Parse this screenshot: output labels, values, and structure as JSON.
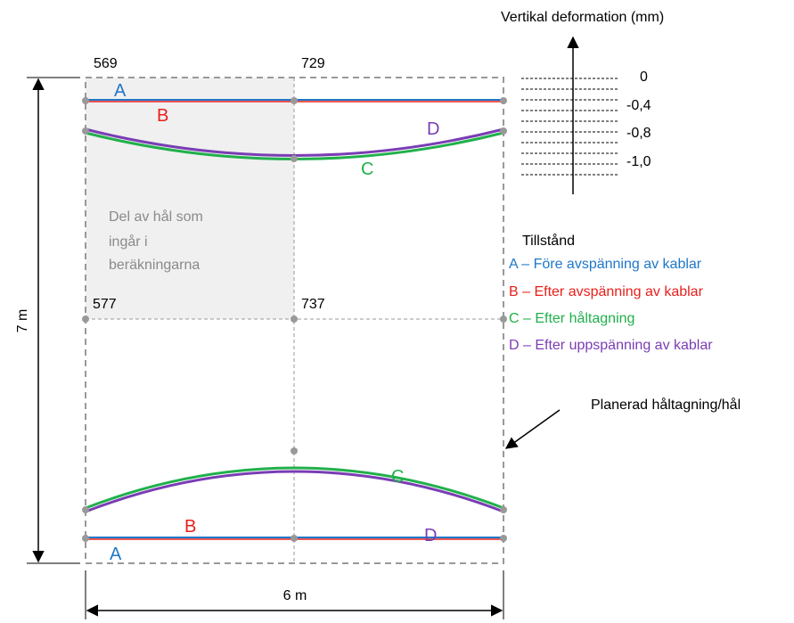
{
  "vertical_axis": {
    "title": "Vertikal deformation  (mm)",
    "ticks": [
      "0",
      "-0,4",
      "-0,8",
      "-1,0"
    ]
  },
  "node_labels": {
    "top_left": "569",
    "top_mid": "729",
    "mid_left": "577",
    "mid_mid": "737"
  },
  "hole_note": [
    "Del av hål som",
    "ingår i",
    "beräkningarna"
  ],
  "dimensions": {
    "height": "7 m",
    "width": "6 m"
  },
  "curve_labels": {
    "top": {
      "A": "A",
      "B": "B",
      "C": "C",
      "D": "D"
    },
    "bottom": {
      "A": "A",
      "B": "B",
      "C": "C",
      "D": "D"
    }
  },
  "legend": {
    "title": "Tillstånd",
    "items": [
      {
        "text": "A – Före avspänning  av kablar",
        "color": "#1f77c8"
      },
      {
        "text": "B – Efter avspänning  av kablar",
        "color": "#e8201c"
      },
      {
        "text": "C – Efter håltagning",
        "color": "#21b04b"
      },
      {
        "text": "D – Efter uppspänning  av kablar",
        "color": "#7a3db4"
      }
    ]
  },
  "callout": "Planerad håltagning/hål",
  "colors": {
    "A": "#1f77c8",
    "B": "#e8201c",
    "C": "#21b04b",
    "D": "#7a3db4",
    "dashed": "#999999",
    "node": "#999999",
    "shade": "#f0f0f0"
  }
}
